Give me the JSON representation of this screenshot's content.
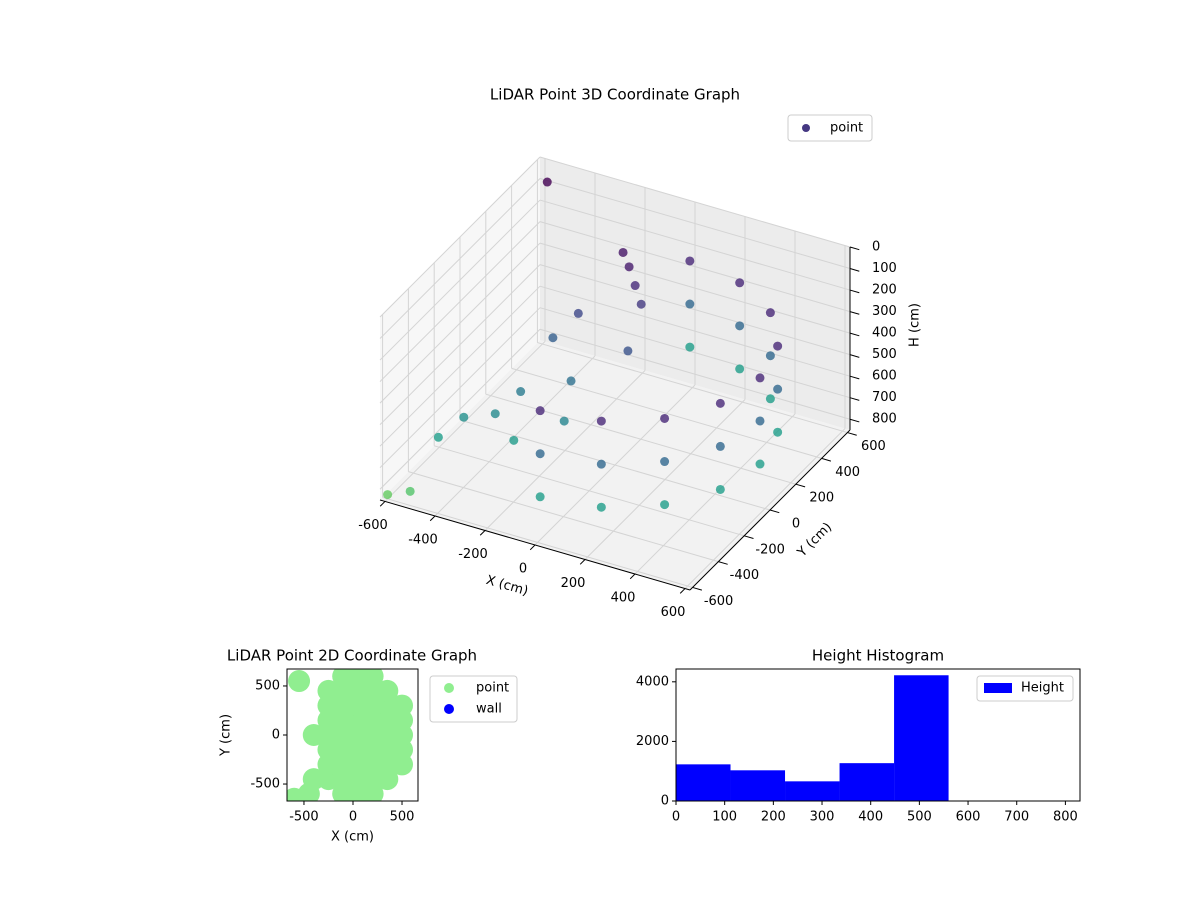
{
  "chart_data": [
    {
      "type": "scatter3d",
      "title": "LiDAR Point 3D Coordinate Graph",
      "xlabel": "X (cm)",
      "ylabel": "Y (cm)",
      "zlabel": "H (cm)",
      "xlim": [
        -620,
        620
      ],
      "ylim": [
        -620,
        620
      ],
      "zlim": [
        0,
        850
      ],
      "z_inverted": true,
      "xticks": [
        -600,
        -400,
        -200,
        0,
        200,
        400,
        600
      ],
      "yticks": [
        -600,
        -400,
        -200,
        0,
        200,
        400,
        600
      ],
      "zticks": [
        0,
        100,
        200,
        300,
        400,
        500,
        600,
        700,
        800
      ],
      "colormap": "viridis",
      "clim": [
        150,
        1050
      ],
      "legend": "upper right",
      "grid": true,
      "series": [
        {
          "name": "point",
          "color": "#453882",
          "x": [
            0,
            222,
            410,
            536,
            580,
            536,
            410,
            222,
            0,
            0,
            222,
            410,
            536,
            580,
            536,
            410,
            222,
            0,
            0,
            222,
            410,
            536,
            580,
            536,
            410,
            222,
            0,
            -150,
            -100,
            -200,
            -50,
            -250,
            -300,
            -450,
            -350,
            -500,
            -300,
            -250,
            -600,
            -520,
            -560,
            -150,
            0,
            -100
          ],
          "y": [
            -580,
            -536,
            -410,
            -222,
            0,
            222,
            410,
            536,
            580,
            -580,
            -536,
            -410,
            -222,
            0,
            222,
            410,
            536,
            580,
            -580,
            -536,
            -410,
            -222,
            0,
            222,
            410,
            536,
            580,
            400,
            350,
            450,
            300,
            200,
            100,
            -300,
            -250,
            -400,
            -150,
            -300,
            -600,
            -580,
            560,
            -50,
            100,
            -200
          ],
          "z": [
            250,
            250,
            250,
            250,
            250,
            250,
            250,
            250,
            250,
            450,
            450,
            450,
            450,
            450,
            450,
            450,
            450,
            450,
            650,
            650,
            650,
            650,
            650,
            650,
            650,
            650,
            650,
            220,
            260,
            200,
            300,
            350,
            420,
            600,
            580,
            650,
            520,
            640,
            830,
            800,
            60,
            480,
            380,
            560
          ]
        }
      ]
    },
    {
      "type": "scatter",
      "title": "LiDAR Point 2D Coordinate Graph",
      "xlabel": "X (cm)",
      "ylabel": "Y (cm)",
      "xlim": [
        -673,
        663
      ],
      "ylim": [
        -673,
        673
      ],
      "xticks": [
        -500,
        0,
        500
      ],
      "yticks": [
        -500,
        0,
        500
      ],
      "legend": "outside right",
      "series": [
        {
          "name": "point",
          "color": "#90ee90",
          "x": [
            500,
            500,
            500,
            500,
            500,
            350,
            350,
            350,
            350,
            350,
            350,
            350,
            200,
            200,
            200,
            200,
            200,
            200,
            200,
            200,
            200,
            50,
            50,
            50,
            50,
            50,
            50,
            50,
            50,
            50,
            -100,
            -100,
            -100,
            -100,
            -100,
            -100,
            -100,
            -100,
            -100,
            -250,
            -250,
            -250,
            -250,
            -250,
            -250,
            -250,
            -400,
            -400,
            -550,
            -600,
            -450
          ],
          "y": [
            -300,
            -150,
            0,
            150,
            300,
            -450,
            -300,
            -150,
            0,
            150,
            300,
            450,
            -600,
            -450,
            -300,
            -150,
            0,
            150,
            300,
            450,
            600,
            -600,
            -450,
            -300,
            -150,
            0,
            150,
            300,
            450,
            600,
            -600,
            -450,
            -300,
            -150,
            0,
            150,
            300,
            450,
            600,
            -450,
            -300,
            -150,
            0,
            150,
            300,
            450,
            -450,
            0,
            550,
            -650,
            -600
          ]
        },
        {
          "name": "wall",
          "color": "#0000ff",
          "x": [],
          "y": []
        }
      ]
    },
    {
      "type": "histogram",
      "title": "Height Histogram",
      "bins": [
        0,
        112,
        224,
        336,
        448,
        560,
        672,
        784
      ],
      "xlim": [
        0,
        830
      ],
      "ylim": [
        0,
        4430
      ],
      "xticks": [
        0,
        100,
        200,
        300,
        400,
        500,
        600,
        700,
        800
      ],
      "yticks": [
        0,
        2000,
        4000
      ],
      "legend": "upper right",
      "series": [
        {
          "name": "Height",
          "color": "#0000ff",
          "values": [
            1230,
            1030,
            660,
            1270,
            4220,
            0,
            0
          ]
        }
      ]
    }
  ]
}
